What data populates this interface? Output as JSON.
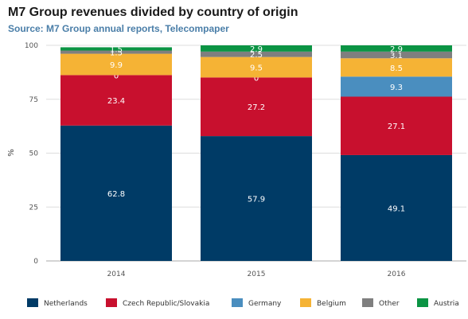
{
  "chart_data": {
    "type": "bar",
    "stacked": true,
    "title": "M7 Group revenues divided by country of origin",
    "subtitle": "Source: M7 Group annual reports, Telecompaper",
    "ylabel": "%",
    "xlabel": "",
    "ylim": [
      0,
      100
    ],
    "yticks": [
      0,
      25,
      50,
      75,
      100
    ],
    "categories": [
      "2014",
      "2015",
      "2016"
    ],
    "legend_position": "bottom",
    "grid": true,
    "series": [
      {
        "name": "Netherlands",
        "color": "#003b66",
        "values": [
          62.8,
          57.9,
          49.1
        ]
      },
      {
        "name": "Czech Republic/Slovakia",
        "color": "#c8102e",
        "values": [
          23.4,
          27.2,
          27.1
        ]
      },
      {
        "name": "Germany",
        "color": "#4a8ebf",
        "values": [
          0,
          0,
          9.3
        ]
      },
      {
        "name": "Belgium",
        "color": "#f5b335",
        "values": [
          9.9,
          9.5,
          8.5
        ]
      },
      {
        "name": "Other",
        "color": "#7f7f7f",
        "values": [
          1.5,
          2.5,
          3.1
        ]
      },
      {
        "name": "Austria",
        "color": "#0b9444",
        "values": [
          1.5,
          2.9,
          2.9
        ]
      }
    ]
  }
}
